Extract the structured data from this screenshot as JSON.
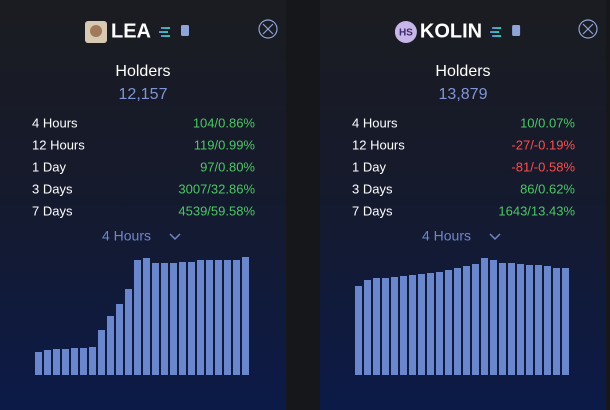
{
  "panels": [
    {
      "name": "LEA",
      "holders_label": "Holders",
      "holders_value": "12,157",
      "stats": [
        {
          "label": "4 Hours",
          "value": "104/0.86%",
          "color": "#4cc764"
        },
        {
          "label": "12 Hours",
          "value": "119/0.99%",
          "color": "#4cc764"
        },
        {
          "label": "1 Day",
          "value": "97/0.80%",
          "color": "#4cc764"
        },
        {
          "label": "3 Days",
          "value": "3007/32.86%",
          "color": "#4cc764"
        },
        {
          "label": "7 Days",
          "value": "4539/59.58%",
          "color": "#4cc764"
        }
      ],
      "period": "4 Hours",
      "chart": {
        "type": "bar",
        "color": "#6a86cc",
        "ylim": [
          0,
          120
        ],
        "values": [
          23,
          25,
          26,
          26,
          27,
          27,
          28,
          45,
          59,
          71,
          86,
          115,
          117,
          112,
          112,
          112,
          113,
          113,
          115,
          115,
          115,
          115,
          115,
          118
        ]
      }
    },
    {
      "name": "KOLIN",
      "badge": "HS",
      "holders_label": "Holders",
      "holders_value": "13,879",
      "stats": [
        {
          "label": "4 Hours",
          "value": "10/0.07%",
          "color": "#4cc764"
        },
        {
          "label": "12 Hours",
          "value": "-27/-0.19%",
          "color": "#ff4d4d"
        },
        {
          "label": "1 Day",
          "value": "-81/-0.58%",
          "color": "#ff4d4d"
        },
        {
          "label": "3 Days",
          "value": "86/0.62%",
          "color": "#4cc764"
        },
        {
          "label": "7 Days",
          "value": "1643/13.43%",
          "color": "#4cc764"
        }
      ],
      "period": "4 Hours",
      "chart": {
        "type": "bar",
        "color": "#6a86cc",
        "ylim": [
          0,
          120
        ],
        "values": [
          89,
          95,
          97,
          97,
          98,
          99,
          100,
          101,
          102,
          103,
          105,
          107,
          109,
          111,
          117,
          115,
          112,
          112,
          111,
          110,
          110,
          109,
          107,
          107
        ]
      }
    }
  ]
}
